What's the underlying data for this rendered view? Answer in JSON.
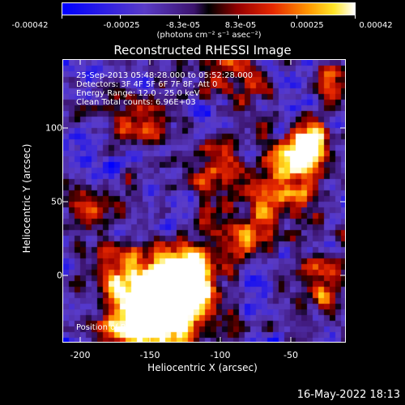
{
  "colorbar": {
    "ticks": [
      "-0.00042",
      "-0.00025",
      "-8.3e-05",
      "8.3e-05",
      "0.00025",
      "0.00042"
    ],
    "unit_label": "(photons cm⁻² s⁻¹ asec⁻²)"
  },
  "title": "Reconstructed RHESSI Image",
  "info": {
    "time_range": "25-Sep-2013 05:48:28.000 to 05:52:28.000",
    "detectors": "Detectors: 3F 4F 5F 6F 7F 8F, Att 0",
    "energy_range": "Energy Range: 12.0 - 25.0 keV",
    "clean": "Clean     Total counts: 6.96E+03",
    "position": "Position of Peak: [-153,-32]"
  },
  "axes": {
    "x_label": "Heliocentric X (arcsec)",
    "y_label": "Heliocentric Y (arcsec)",
    "x_ticks": [
      "-200",
      "-150",
      "-100",
      "-50"
    ],
    "y_ticks": [
      "100",
      "50",
      "0"
    ]
  },
  "timestamp": "16-May-2022 18:13"
}
